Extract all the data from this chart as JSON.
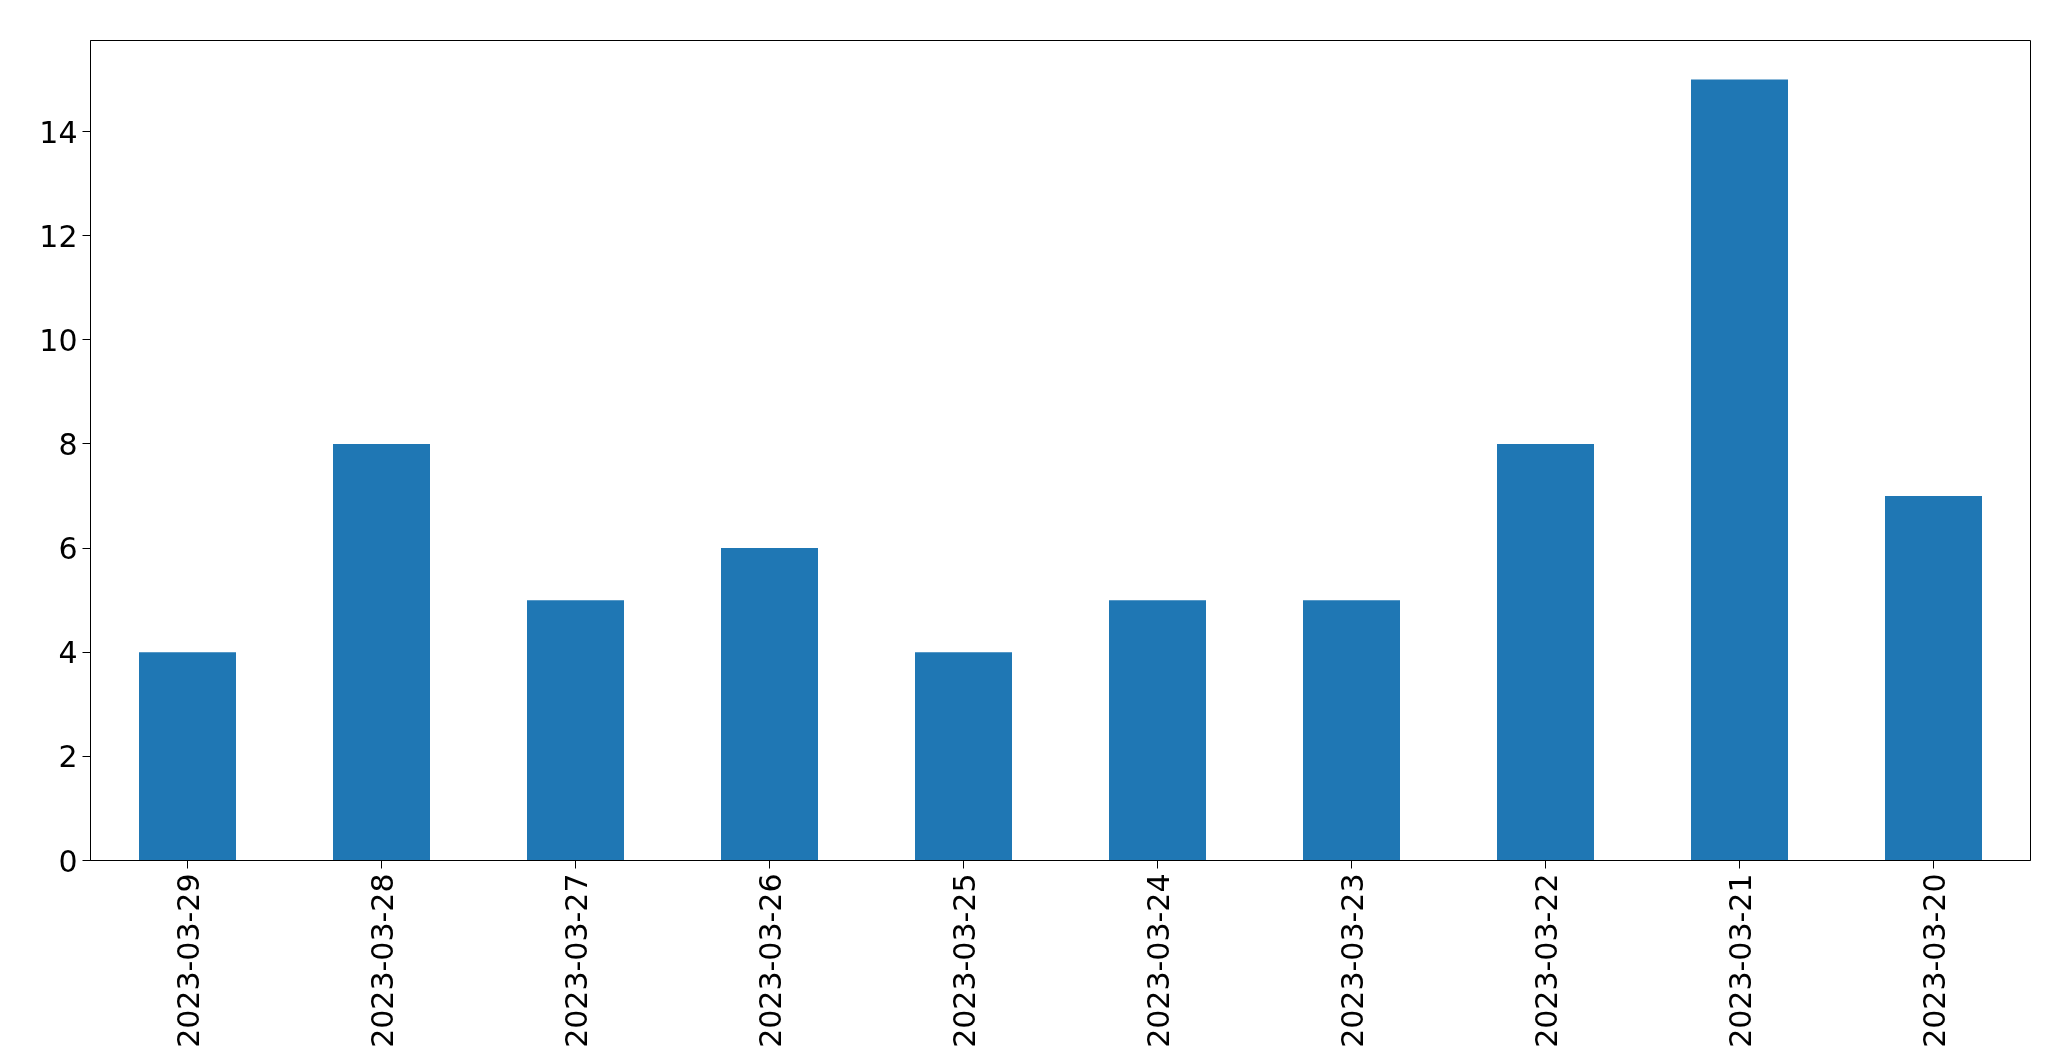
{
  "chart_data": {
    "type": "bar",
    "categories": [
      "2023-03-29",
      "2023-03-28",
      "2023-03-27",
      "2023-03-26",
      "2023-03-25",
      "2023-03-24",
      "2023-03-23",
      "2023-03-22",
      "2023-03-21",
      "2023-03-20"
    ],
    "values": [
      4,
      8,
      5,
      6,
      4,
      5,
      5,
      8,
      15,
      7
    ],
    "color": "#1f77b4",
    "ylim": [
      0,
      15.75
    ],
    "yticks": [
      0,
      2,
      4,
      6,
      8,
      10,
      12,
      14
    ],
    "grid": false
  }
}
